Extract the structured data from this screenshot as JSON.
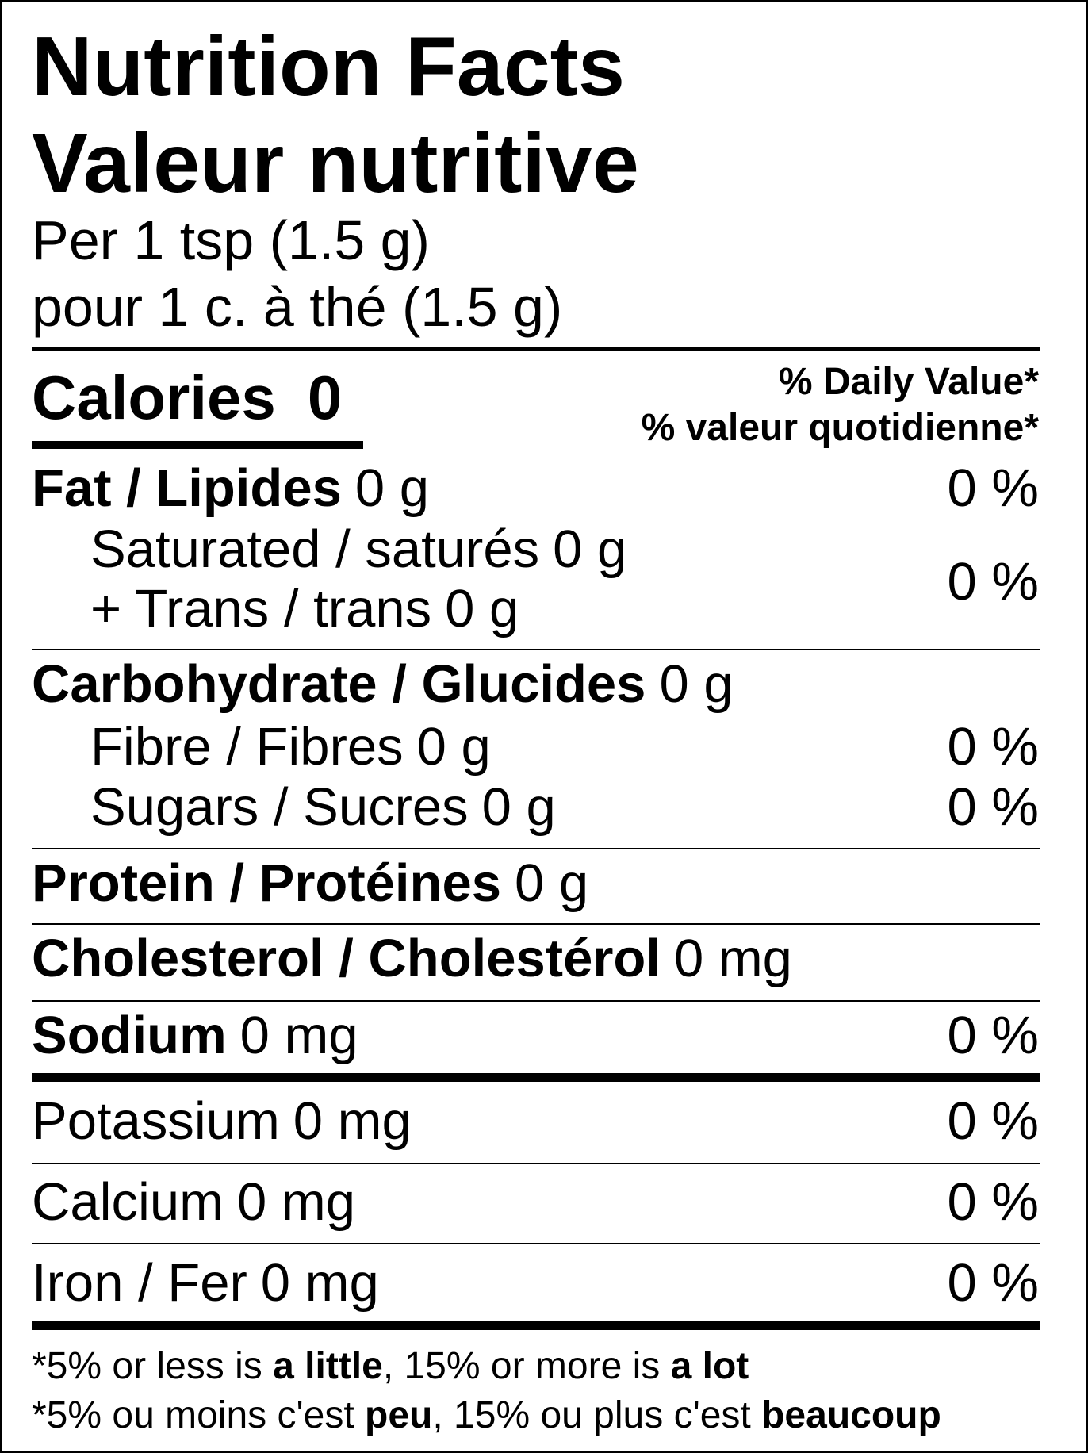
{
  "title": {
    "en": "Nutrition Facts",
    "fr": "Valeur nutritive"
  },
  "serving": {
    "en": "Per 1 tsp (1.5 g)",
    "fr": "pour 1 c. à thé (1.5 g)"
  },
  "calories": {
    "label": "Calories",
    "value": "0"
  },
  "daily_value_header": {
    "en": "% Daily Value*",
    "fr": "% valeur quotidienne*"
  },
  "rows": [
    {
      "name": "Fat / Lipides",
      "amount": "0 g",
      "dv": "0 %"
    },
    {
      "name": "Saturated / saturés",
      "amount": "0 g",
      "dv": "0 %"
    },
    {
      "name": "+ Trans / trans",
      "amount": "0 g"
    },
    {
      "name": "Carbohydrate / Glucides",
      "amount": "0 g"
    },
    {
      "name": "Fibre / Fibres",
      "amount": "0 g",
      "dv": "0 %"
    },
    {
      "name": "Sugars / Sucres",
      "amount": "0 g",
      "dv": "0 %"
    },
    {
      "name": "Protein / Protéines",
      "amount": "0 g"
    },
    {
      "name": "Cholesterol / Cholestérol",
      "amount": "0 mg"
    },
    {
      "name": "Sodium",
      "amount": "0 mg",
      "dv": "0 %"
    },
    {
      "name": "Potassium",
      "amount": "0 mg",
      "dv": "0 %"
    },
    {
      "name": "Calcium",
      "amount": "0 mg",
      "dv": "0 %"
    },
    {
      "name": "Iron / Fer",
      "amount": "0 mg",
      "dv": "0 %"
    }
  ],
  "footnote": [
    [
      "*5% or less is ",
      "a little",
      ", 15% or more is ",
      "a lot"
    ],
    [
      "*5% ou moins c'est ",
      "peu",
      ", 15% ou plus c'est ",
      "beaucoup"
    ]
  ]
}
